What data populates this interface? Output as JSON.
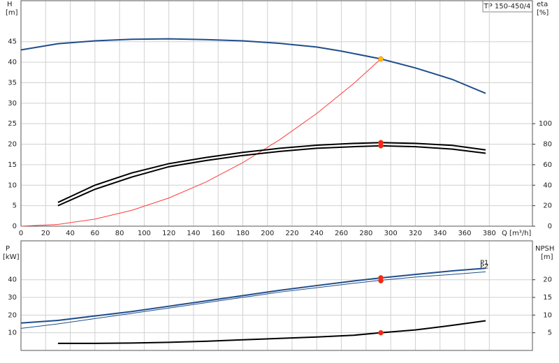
{
  "chart_data": [
    {
      "type": "line",
      "title": "TP 150-450/4",
      "ylabel": "H",
      "yunit": "[m]",
      "y2label": "eta",
      "y2unit": "[%]",
      "xlabel": "Q [m³/h]",
      "xlim": [
        0,
        415
      ],
      "xticks": [
        0,
        20,
        40,
        60,
        80,
        100,
        120,
        140,
        160,
        180,
        200,
        220,
        240,
        260,
        280,
        300,
        320,
        340,
        360,
        380
      ],
      "ylim": [
        0,
        55
      ],
      "yticks": [
        0,
        5,
        10,
        15,
        20,
        25,
        30,
        35,
        40,
        45
      ],
      "y2lim": [
        0,
        220
      ],
      "y2ticks": [
        0,
        20,
        40,
        60,
        80,
        100
      ],
      "grid": true,
      "show_xtick_labels": true,
      "series": [
        {
          "color": "#1f4e8c",
          "line_width": 2,
          "x": [
            0,
            30,
            60,
            90,
            120,
            150,
            180,
            210,
            240,
            260,
            292,
            320,
            350,
            377
          ],
          "values": [
            43,
            44.5,
            45.2,
            45.6,
            45.7,
            45.5,
            45.2,
            44.6,
            43.7,
            42.7,
            40.8,
            38.6,
            35.8,
            32.4
          ]
        },
        {
          "color": "#ff3b3b",
          "line_width": 1,
          "x": [
            0,
            30,
            60,
            90,
            120,
            150,
            180,
            210,
            240,
            270,
            292
          ],
          "values": [
            0,
            0.43,
            1.72,
            3.87,
            6.88,
            10.76,
            15.5,
            21.1,
            27.5,
            34.8,
            40.8
          ]
        },
        {
          "color": "#000000",
          "line_width": 2,
          "axis": "y2",
          "x": [
            30,
            60,
            90,
            120,
            150,
            180,
            210,
            240,
            270,
            292,
            320,
            350,
            377
          ],
          "values": [
            23.2,
            40,
            52,
            61,
            67,
            72,
            76,
            79,
            80.8,
            81.6,
            80.8,
            78.8,
            74.4
          ]
        },
        {
          "color": "#000000",
          "line_width": 2,
          "axis": "y2",
          "x": [
            30,
            60,
            90,
            120,
            150,
            180,
            210,
            240,
            270,
            292,
            320,
            350,
            377
          ],
          "values": [
            20,
            36,
            48,
            58,
            64,
            69,
            73,
            76,
            77.6,
            78.4,
            77.6,
            75.2,
            71.2
          ]
        }
      ],
      "points": [
        {
          "x": 292,
          "y": 40.8,
          "color": "#ffc000"
        },
        {
          "x": 292,
          "y": 81.6,
          "axis": "y2",
          "color": "#ff2020"
        },
        {
          "x": 292,
          "y": 78.4,
          "axis": "y2",
          "color": "#ff2020"
        }
      ]
    },
    {
      "type": "line",
      "ylabel": "P",
      "yunit": "[kW]",
      "y2label": "NPSH",
      "y2unit": "[m]",
      "xlim": [
        0,
        415
      ],
      "xticks": [
        0,
        20,
        40,
        60,
        80,
        100,
        120,
        140,
        160,
        180,
        200,
        220,
        240,
        260,
        280,
        300,
        320,
        340,
        360,
        380
      ],
      "ylim": [
        0,
        62
      ],
      "yticks": [
        10,
        20,
        30,
        40
      ],
      "y2lim": [
        0,
        31
      ],
      "y2ticks": [
        5,
        10,
        15,
        20
      ],
      "grid": true,
      "show_xtick_labels": false,
      "series": [
        {
          "name": "P1",
          "color": "#1f4e8c",
          "line_width": 2,
          "x": [
            0,
            30,
            60,
            90,
            120,
            150,
            180,
            210,
            240,
            270,
            292,
            320,
            350,
            377
          ],
          "values": [
            15.5,
            17,
            19.5,
            22,
            25,
            28,
            31,
            34,
            36.7,
            39.3,
            41,
            43,
            45,
            46.5
          ]
        },
        {
          "name": "P2",
          "color": "#1f4e8c",
          "line_width": 1,
          "x": [
            0,
            30,
            60,
            90,
            120,
            150,
            180,
            210,
            240,
            270,
            292,
            320,
            350,
            377
          ],
          "values": [
            12.5,
            15,
            18,
            21,
            24,
            27,
            30,
            33,
            35.5,
            38,
            39.7,
            41.5,
            43,
            44.5
          ]
        },
        {
          "color": "#000000",
          "line_width": 2,
          "axis": "y2",
          "x": [
            30,
            60,
            90,
            120,
            150,
            180,
            210,
            240,
            270,
            292,
            320,
            350,
            377
          ],
          "values": [
            2,
            2,
            2.1,
            2.3,
            2.6,
            3,
            3.4,
            3.8,
            4.3,
            5,
            5.8,
            7.1,
            8.4
          ]
        }
      ],
      "points": [
        {
          "x": 292,
          "y": 41.1,
          "color": "#ff2020"
        },
        {
          "x": 292,
          "y": 39.4,
          "color": "#ff2020"
        },
        {
          "x": 292,
          "y": 5,
          "axis": "y2",
          "color": "#ff2020"
        }
      ]
    }
  ]
}
